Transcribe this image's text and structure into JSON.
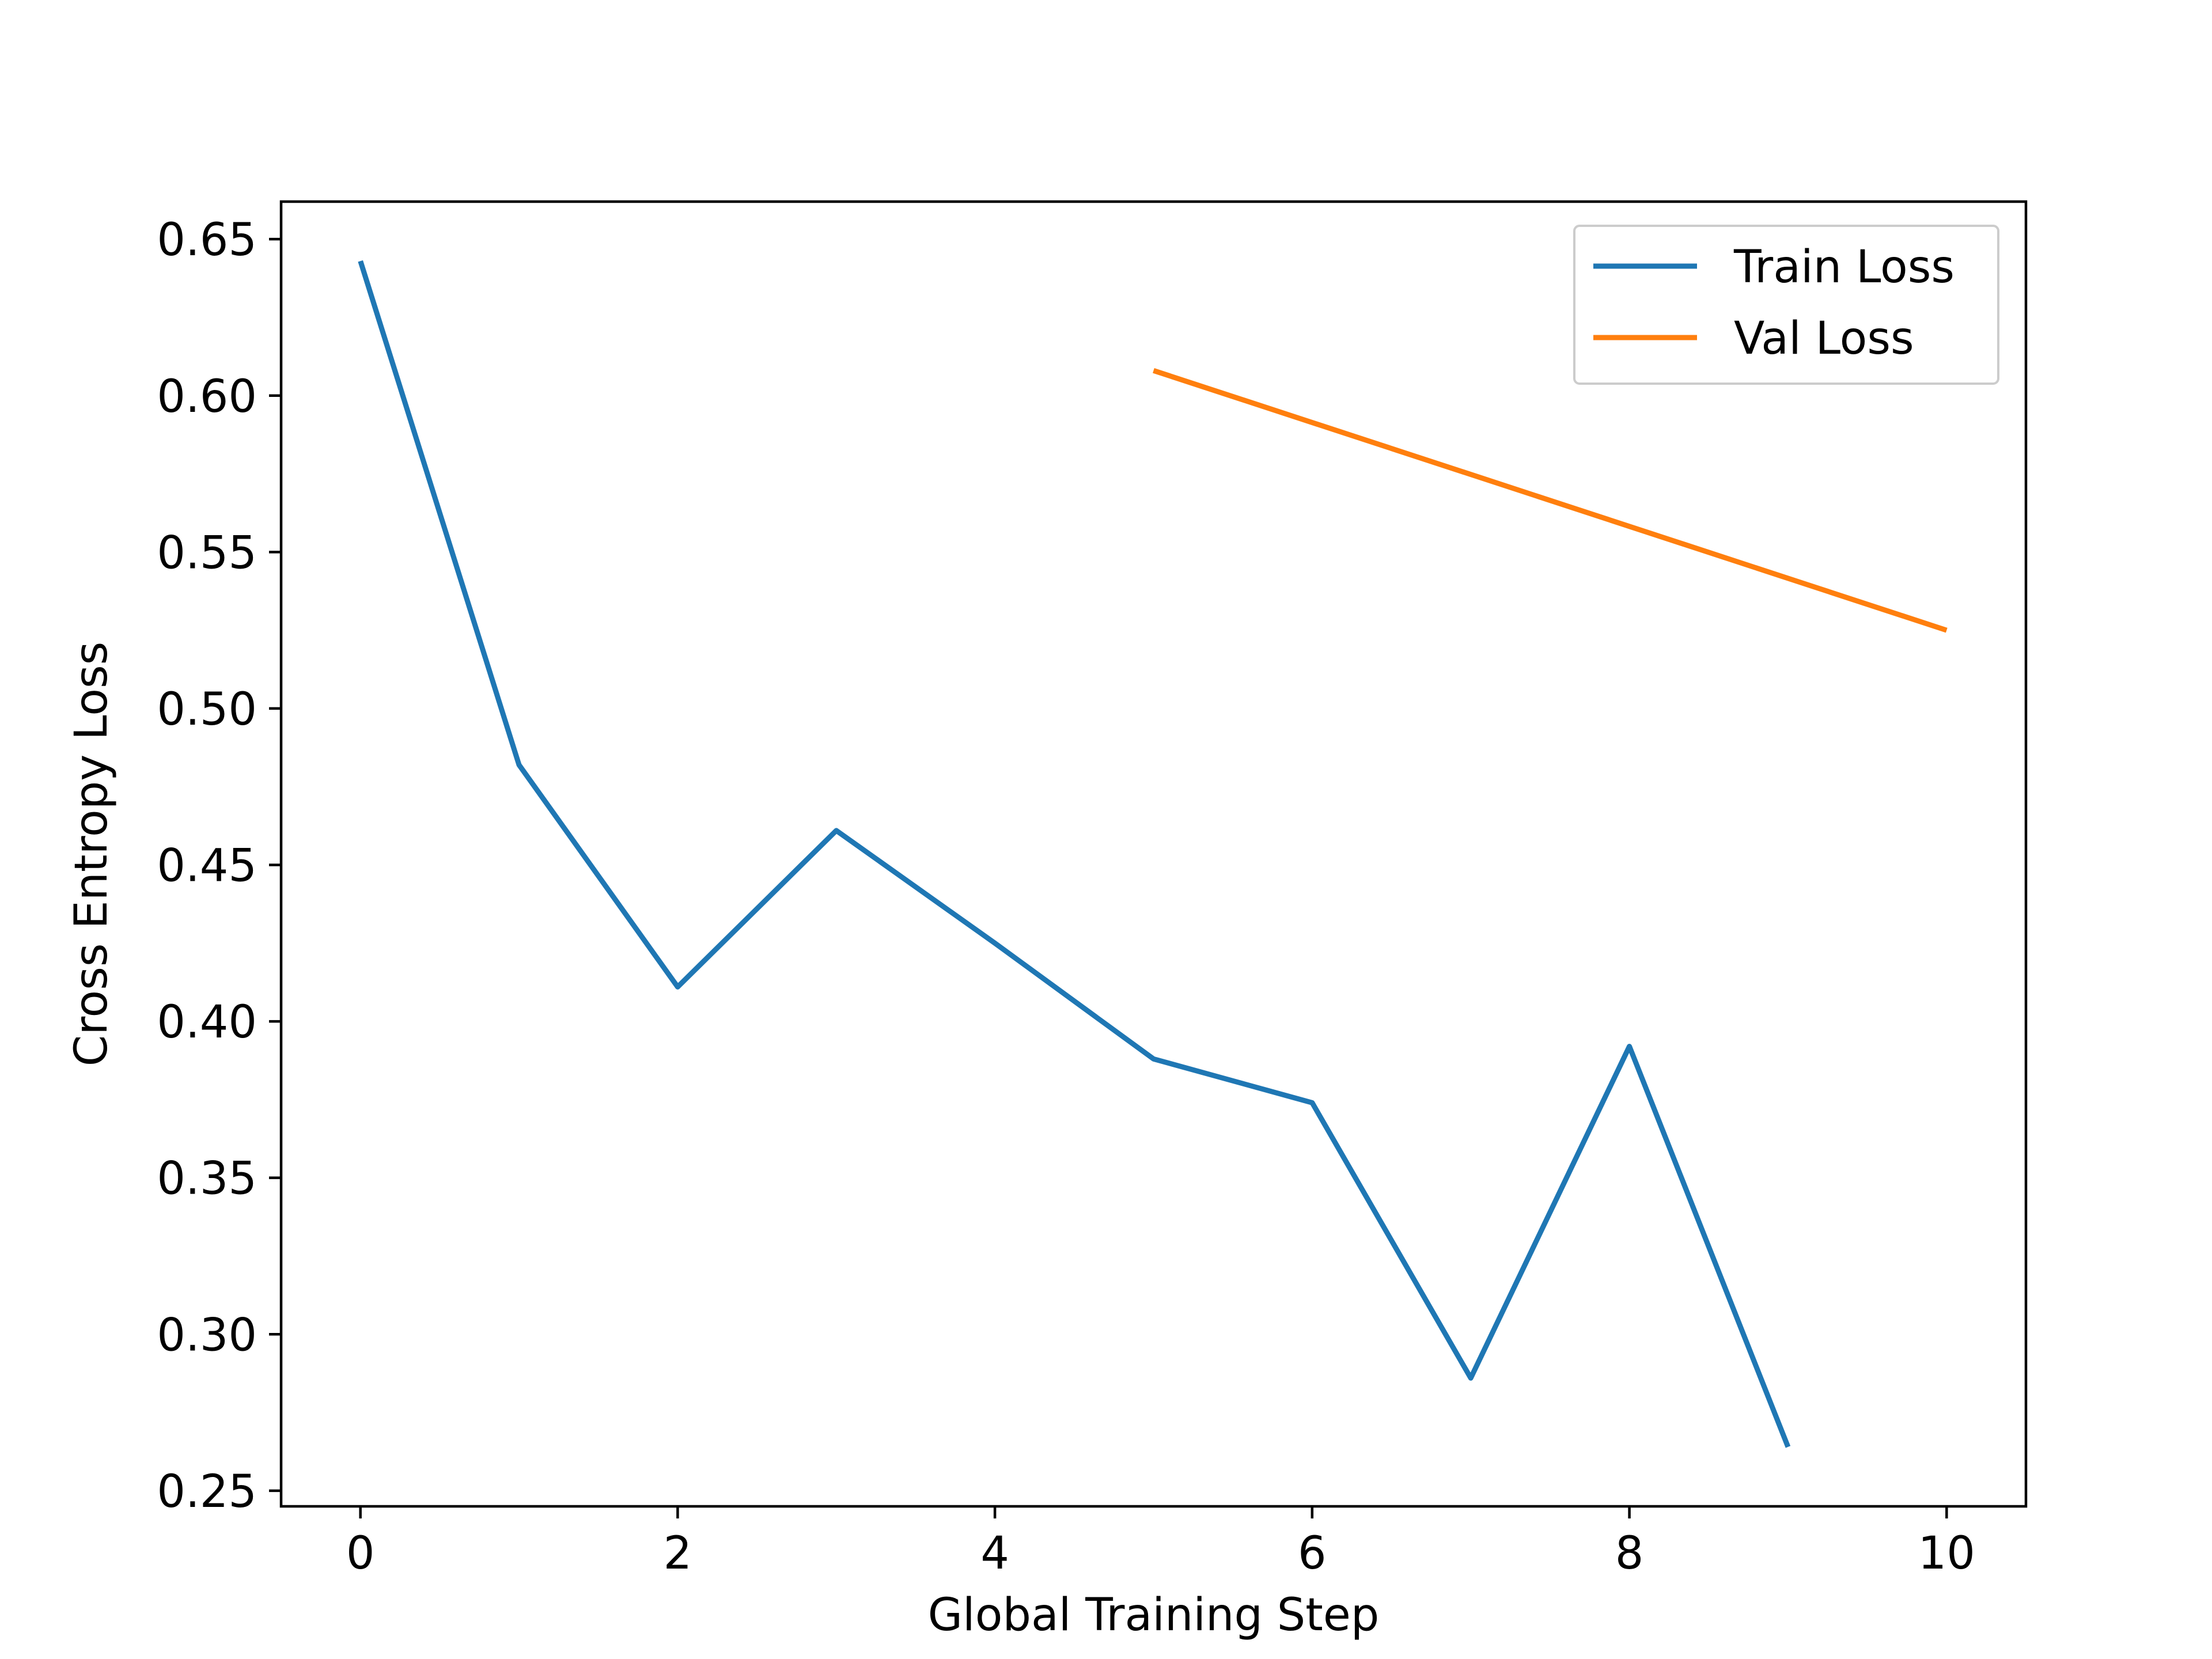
{
  "chart_data": {
    "type": "line",
    "title": "",
    "xlabel": "Global Training Step",
    "ylabel": "Cross Entropy Loss",
    "xlim": [
      -0.5,
      10.5
    ],
    "ylim": [
      0.245,
      0.662
    ],
    "xticks": [
      0,
      2,
      4,
      6,
      8,
      10
    ],
    "xtick_labels": [
      "0",
      "2",
      "4",
      "6",
      "8",
      "10"
    ],
    "yticks": [
      0.25,
      0.3,
      0.35,
      0.4,
      0.45,
      0.5,
      0.55,
      0.6,
      0.65
    ],
    "ytick_labels": [
      "0.25",
      "0.30",
      "0.35",
      "0.40",
      "0.45",
      "0.50",
      "0.55",
      "0.60",
      "0.65"
    ],
    "grid": false,
    "legend_position": "top-right",
    "series": [
      {
        "name": "Train Loss",
        "color": "#1f77b4",
        "x": [
          0,
          1,
          2,
          3,
          4,
          5,
          6,
          7,
          8,
          9
        ],
        "y": [
          0.643,
          0.482,
          0.411,
          0.461,
          0.425,
          0.388,
          0.374,
          0.286,
          0.392,
          0.264
        ]
      },
      {
        "name": "Val Loss",
        "color": "#ff7f0e",
        "x": [
          5,
          10
        ],
        "y": [
          0.608,
          0.525
        ]
      }
    ]
  }
}
